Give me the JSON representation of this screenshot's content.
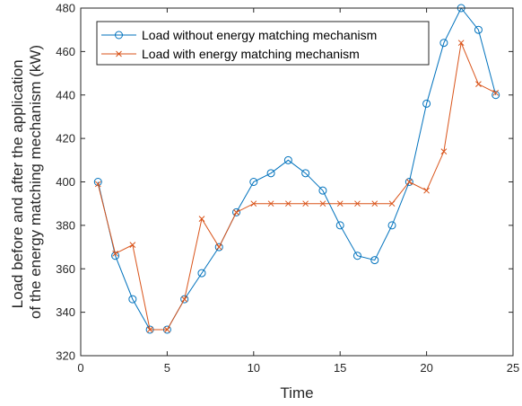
{
  "chart_data": {
    "type": "line",
    "title": "",
    "xlabel": "Time",
    "ylabel_lines": [
      "Load before and after the application",
      "of the energy matching mechanism (kW)"
    ],
    "xlim": [
      0,
      25
    ],
    "ylim": [
      320,
      480
    ],
    "xticks": [
      0,
      5,
      10,
      15,
      20,
      25
    ],
    "yticks": [
      320,
      340,
      360,
      380,
      400,
      420,
      440,
      460,
      480
    ],
    "grid": false,
    "legend_position": "top-left",
    "x": [
      1,
      2,
      3,
      4,
      5,
      6,
      7,
      8,
      9,
      10,
      11,
      12,
      13,
      14,
      15,
      16,
      17,
      18,
      19,
      20,
      21,
      22,
      23,
      24
    ],
    "series": [
      {
        "name": "Load without energy matching mechanism",
        "color": "#0072BD",
        "marker": "circle",
        "values": [
          400,
          366,
          346,
          332,
          332,
          346,
          358,
          370,
          386,
          400,
          404,
          410,
          404,
          396,
          380,
          366,
          364,
          380,
          400,
          436,
          464,
          480,
          470,
          440
        ]
      },
      {
        "name": "Load with energy matching mechanism",
        "color": "#D95319",
        "marker": "x",
        "values": [
          399,
          367,
          371,
          332,
          332,
          346,
          383,
          370,
          386,
          390,
          390,
          390,
          390,
          390,
          390,
          390,
          390,
          390,
          400,
          396,
          414,
          464,
          445,
          441
        ]
      }
    ]
  }
}
